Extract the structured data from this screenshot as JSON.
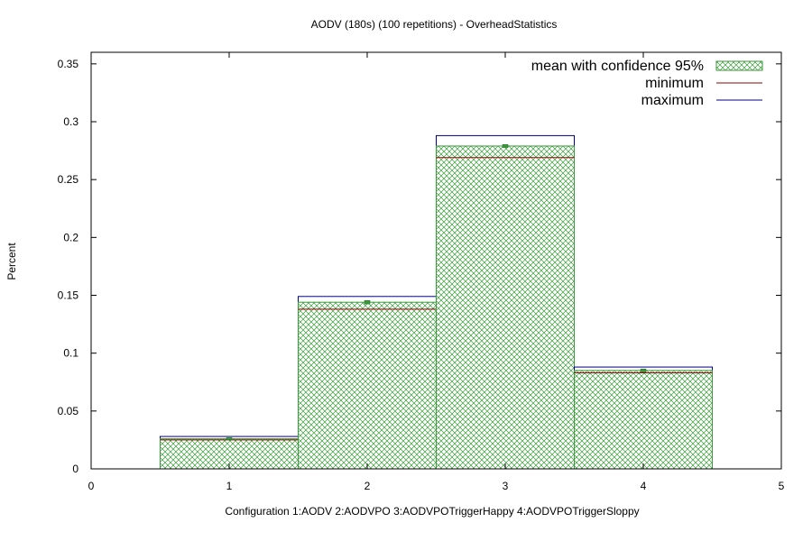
{
  "chart_data": {
    "type": "bar",
    "title": "AODV (180s) (100 repetitions) - OverheadStatistics",
    "xlabel": "Configuration 1:AODV  2:AODVPO  3:AODVPOTriggerHappy  4:AODVPOTriggerSloppy",
    "ylabel": "Percent",
    "xlim": [
      0,
      5
    ],
    "ylim": [
      0,
      0.36
    ],
    "x_ticks": [
      0,
      1,
      2,
      3,
      4,
      5
    ],
    "y_ticks": [
      0,
      0.05,
      0.1,
      0.15,
      0.2,
      0.25,
      0.3,
      0.35
    ],
    "y_tick_labels": [
      "0",
      "0.05",
      "0.1",
      "0.15",
      "0.2",
      "0.25",
      "0.3",
      "0.35"
    ],
    "x": [
      1,
      2,
      3,
      4
    ],
    "bar_width": 1,
    "series": [
      {
        "name": "mean with confidence 95%",
        "values": [
          0.026,
          0.144,
          0.279,
          0.085
        ],
        "ci_low": [
          0.0258,
          0.1433,
          0.2785,
          0.0845
        ],
        "ci_high": [
          0.0262,
          0.1447,
          0.2795,
          0.0855
        ]
      },
      {
        "name": "minimum",
        "values": [
          0.025,
          0.138,
          0.269,
          0.083
        ]
      },
      {
        "name": "maximum",
        "values": [
          0.028,
          0.149,
          0.288,
          0.088
        ]
      }
    ],
    "legend_position": "top-right",
    "colors": {
      "mean_fill": "#3a9a3a",
      "minimum": "#8b0000",
      "maximum": "#00008b",
      "frame": "#000000"
    }
  }
}
